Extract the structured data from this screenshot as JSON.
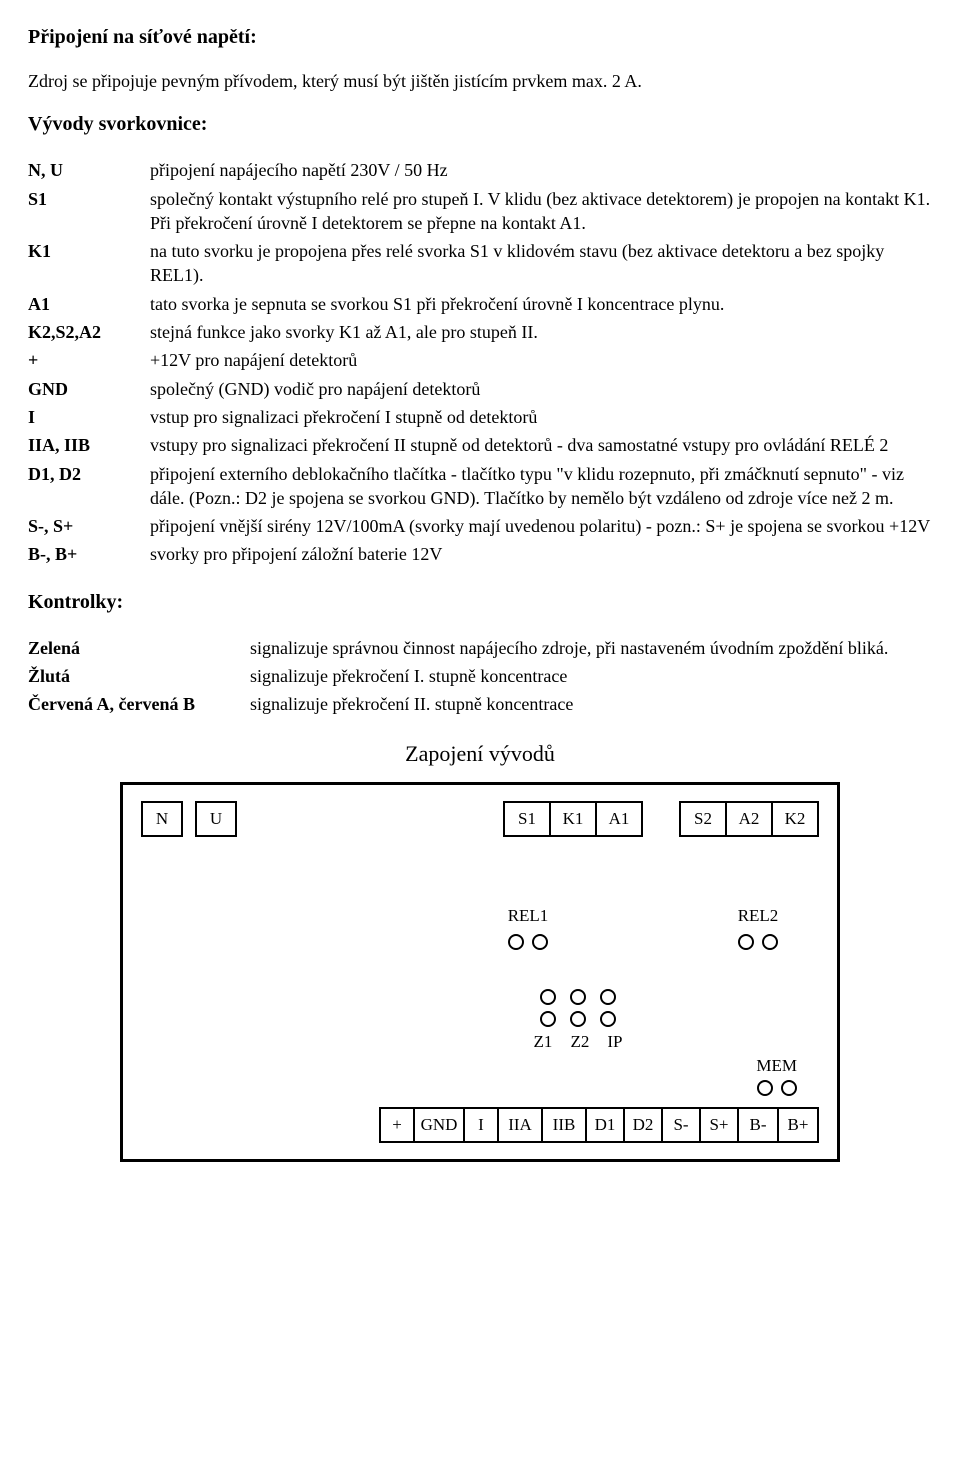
{
  "sections": {
    "conn_title": "Připojení na síťové napětí:",
    "conn_text": "Zdroj se připojuje pevným přívodem, který musí být jištěn jistícím prvkem max. 2 A.",
    "terminals_title": "Vývody svorkovnice:",
    "indicators_title": "Kontrolky:",
    "wiring_title": "Zapojení vývodů"
  },
  "terminals": [
    {
      "term": "N, U",
      "desc": "připojení napájecího napětí 230V / 50 Hz"
    },
    {
      "term": "S1",
      "desc": "společný kontakt výstupního relé pro stupeň I. V klidu (bez aktivace detektorem) je propojen na kontakt K1. Při překročení úrovně I detektorem se přepne na kontakt A1."
    },
    {
      "term": "K1",
      "desc": "na tuto svorku je propojena přes relé svorka S1 v klidovém stavu (bez aktivace detektoru a bez spojky REL1)."
    },
    {
      "term": "A1",
      "desc": "tato svorka je sepnuta se svorkou S1 při překročení úrovně I koncentrace plynu."
    },
    {
      "term": "K2,S2,A2",
      "desc": "stejná funkce jako svorky K1 až A1, ale pro stupeň II."
    },
    {
      "term": "+",
      "desc": "+12V pro napájení detektorů"
    },
    {
      "term": "GND",
      "desc": "společný (GND) vodič pro napájení detektorů"
    },
    {
      "term": "I",
      "desc": "vstup pro signalizaci překročení I stupně od detektorů"
    },
    {
      "term": "IIA, IIB",
      "desc": "vstupy pro signalizaci překročení II stupně od detektorů - dva samostatné vstupy pro ovládání RELÉ 2"
    },
    {
      "term": "D1, D2",
      "desc": "připojení externího deblokačního tlačítka - tlačítko typu \"v klidu rozepnuto, při zmáčknutí sepnuto\" - viz dále. (Pozn.: D2 je spojena se svorkou GND). Tlačítko by nemělo být vzdáleno od zdroje více než 2 m."
    },
    {
      "term": "S-, S+",
      "desc": "připojení vnější sirény 12V/100mA (svorky mají uvedenou polaritu) - pozn.: S+ je spojena se svorkou +12V"
    },
    {
      "term": "B-, B+",
      "desc": "svorky pro připojení záložní baterie 12V"
    }
  ],
  "indicators": [
    {
      "term": "Zelená",
      "desc": "signalizuje správnou činnost napájecího zdroje, při nastaveném úvodním zpoždění bliká."
    },
    {
      "term": "Žlutá",
      "desc": "signalizuje překročení I. stupně koncentrace"
    },
    {
      "term": "Červená A, červená B",
      "desc": "signalizuje překročení II. stupně koncentrace"
    }
  ],
  "diagram": {
    "top_left": [
      "N",
      "U"
    ],
    "top_group1": [
      "S1",
      "K1",
      "A1"
    ],
    "top_group2": [
      "S2",
      "A2",
      "K2"
    ],
    "rel1": "REL1",
    "rel2": "REL2",
    "mid_labels": [
      "Z1",
      "Z2",
      "IP"
    ],
    "mem": "MEM",
    "bottom": [
      "+",
      "GND",
      "I",
      "IIA",
      "IIB",
      "D1",
      "D2",
      "S-",
      "S+",
      "B-",
      "B+"
    ],
    "border_color": "#000000",
    "background": "#ffffff",
    "font_size": 17
  }
}
